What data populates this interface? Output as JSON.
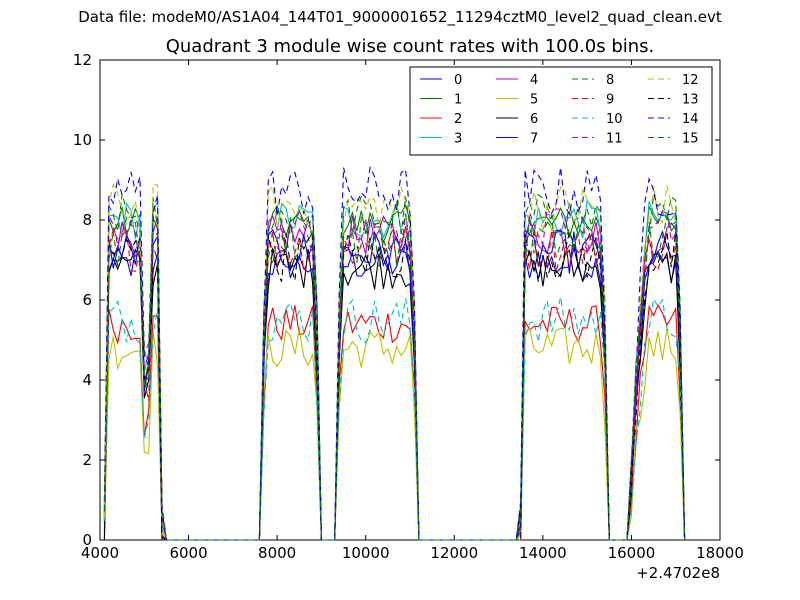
{
  "header": {
    "data_file": "Data file: modeM0/AS1A04_144T01_9000001652_11294cztM0_level2_quad_clean.evt"
  },
  "chart_data": {
    "type": "line",
    "title": "Quadrant 3 module wise count rates with 100.0s bins.",
    "xlabel": "",
    "ylabel": "",
    "xlim": [
      4000,
      18000
    ],
    "ylim": [
      0,
      12
    ],
    "x_ticks": [
      "4000",
      "6000",
      "8000",
      "10000",
      "12000",
      "14000",
      "16000",
      "18000"
    ],
    "y_ticks": [
      "0",
      "2",
      "4",
      "6",
      "8",
      "10",
      "12"
    ],
    "x_offset_label": "+2.4702e8",
    "grid": false,
    "legend_position": "top-right",
    "legend_columns": 4,
    "segments": [
      {
        "start": 4100,
        "end": 5400,
        "dip_start": 4950,
        "dip_end": 5100
      },
      {
        "start": 7650,
        "end": 8950
      },
      {
        "start": 9350,
        "end": 11150
      },
      {
        "start": 13500,
        "end": 15450
      },
      {
        "start": 15950,
        "end": 17150
      }
    ],
    "series": [
      {
        "name": "0",
        "level": 6.9,
        "color": "#0000ff",
        "dash": "solid"
      },
      {
        "name": "1",
        "level": 7.9,
        "color": "#008000",
        "dash": "solid"
      },
      {
        "name": "2",
        "level": 5.4,
        "color": "#ff0000",
        "dash": "solid"
      },
      {
        "name": "3",
        "level": 8.0,
        "color": "#00bfbf",
        "dash": "solid"
      },
      {
        "name": "4",
        "level": 7.6,
        "color": "#bf00bf",
        "dash": "solid"
      },
      {
        "name": "5",
        "level": 4.8,
        "color": "#bfbf00",
        "dash": "solid"
      },
      {
        "name": "6",
        "level": 6.8,
        "color": "#000000",
        "dash": "solid"
      },
      {
        "name": "7",
        "level": 7.2,
        "color": "#0000ff",
        "dash": "solid"
      },
      {
        "name": "8",
        "level": 8.1,
        "color": "#008000",
        "dash": "dashed"
      },
      {
        "name": "9",
        "level": 7.3,
        "color": "#ff0000",
        "dash": "dashed"
      },
      {
        "name": "10",
        "level": 5.5,
        "color": "#00bfbf",
        "dash": "dashed"
      },
      {
        "name": "11",
        "level": 7.7,
        "color": "#bf00bf",
        "dash": "dashed"
      },
      {
        "name": "12",
        "level": 8.3,
        "color": "#bfbf00",
        "dash": "dashed"
      },
      {
        "name": "13",
        "level": 7.1,
        "color": "#000000",
        "dash": "dashed"
      },
      {
        "name": "14",
        "level": 8.7,
        "color": "#0000ff",
        "dash": "dashed"
      },
      {
        "name": "15",
        "level": 7.5,
        "color": "#008000",
        "dash": "dashed"
      }
    ]
  }
}
